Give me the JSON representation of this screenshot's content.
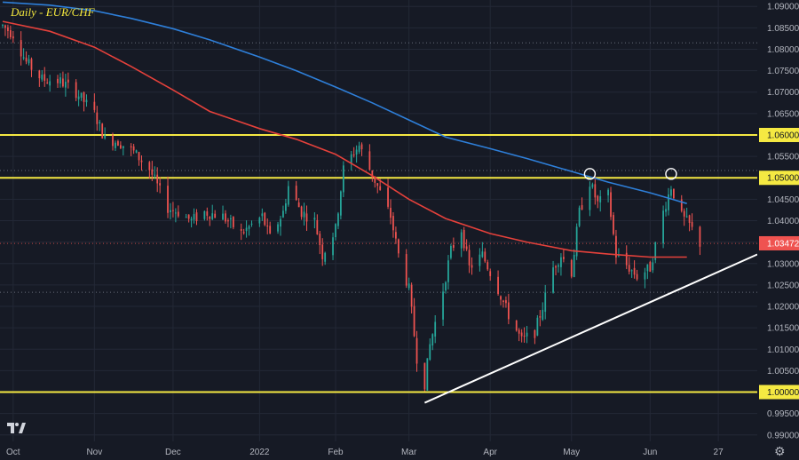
{
  "title": "Daily - EUR/CHF",
  "settings_icon": "gear-icon",
  "logo_icon": "tradingview-logo-icon",
  "colors": {
    "background": "#161a25",
    "grid": "#232836",
    "up": "#26a69a",
    "down": "#ef5350",
    "ma_short": "#e5413b",
    "ma_long": "#2e7fd9",
    "horizontal_level": "#f5e942",
    "trendline": "#ffffff",
    "price_tag": "#ef5350",
    "level_tag": "#f5e942",
    "axis_text": "#b2b5be"
  },
  "chart_data": {
    "type": "candlestick",
    "instrument": "EUR/CHF",
    "timeframe": "Daily",
    "ylim": [
      0.9885,
      1.0915
    ],
    "y_ticks": [
      "1.09000",
      "1.08500",
      "1.08000",
      "1.07500",
      "1.07000",
      "1.06500",
      "1.06000",
      "1.05500",
      "1.05000",
      "1.04500",
      "1.04000",
      "1.03500",
      "1.03000",
      "1.02500",
      "1.02000",
      "1.01500",
      "1.01000",
      "1.00500",
      "1.00000",
      "0.99500",
      "0.99000"
    ],
    "x_ticks": [
      {
        "label": "Oct",
        "date": "2021-10-01"
      },
      {
        "label": "Nov",
        "date": "2021-11-01"
      },
      {
        "label": "Dec",
        "date": "2021-12-01"
      },
      {
        "label": "2022",
        "date": "2022-01-03"
      },
      {
        "label": "Feb",
        "date": "2022-02-01"
      },
      {
        "label": "Mar",
        "date": "2022-03-01"
      },
      {
        "label": "Apr",
        "date": "2022-04-01"
      },
      {
        "label": "May",
        "date": "2022-05-02"
      },
      {
        "label": "Jun",
        "date": "2022-06-01"
      },
      {
        "label": "27",
        "date": "2022-06-27"
      }
    ],
    "x_range": [
      "2021-09-27",
      "2022-06-29"
    ],
    "last_price": "1.03472",
    "horizontal_levels": [
      {
        "value": 1.06,
        "label": "1.06000"
      },
      {
        "value": 1.05,
        "label": "1.05000"
      },
      {
        "value": 1.0,
        "label": "1.00000"
      }
    ],
    "dotted_levels": [
      1.0815,
      1.0517,
      1.0347,
      1.0233
    ],
    "trendline": {
      "from": {
        "date": "2022-03-07",
        "value": 0.9975
      },
      "to": {
        "date": "2022-06-29",
        "value": 1.0315
      }
    },
    "circled_highs": [
      {
        "date": "2022-05-09",
        "value": 1.0505
      },
      {
        "date": "2022-06-09",
        "value": 1.0505
      }
    ],
    "ma_short": [
      [
        "2021-09-27",
        1.0865
      ],
      [
        "2021-10-15",
        1.0842
      ],
      [
        "2021-11-01",
        1.0805
      ],
      [
        "2021-11-15",
        1.076
      ],
      [
        "2021-12-01",
        1.0705
      ],
      [
        "2021-12-15",
        1.0655
      ],
      [
        "2022-01-03",
        1.0615
      ],
      [
        "2022-01-17",
        1.059
      ],
      [
        "2022-02-01",
        1.0555
      ],
      [
        "2022-02-15",
        1.0505
      ],
      [
        "2022-03-01",
        1.045
      ],
      [
        "2022-03-15",
        1.0405
      ],
      [
        "2022-04-01",
        1.037
      ],
      [
        "2022-04-15",
        1.035
      ],
      [
        "2022-05-02",
        1.033
      ],
      [
        "2022-05-16",
        1.0322
      ],
      [
        "2022-06-01",
        1.0315
      ],
      [
        "2022-06-15",
        1.0315
      ]
    ],
    "ma_long": [
      [
        "2021-09-27",
        1.091
      ],
      [
        "2021-10-15",
        1.0903
      ],
      [
        "2021-11-01",
        1.089
      ],
      [
        "2021-11-15",
        1.0872
      ],
      [
        "2021-12-01",
        1.0848
      ],
      [
        "2021-12-15",
        1.0822
      ],
      [
        "2022-01-03",
        1.0782
      ],
      [
        "2022-01-17",
        1.075
      ],
      [
        "2022-02-01",
        1.0712
      ],
      [
        "2022-02-15",
        1.0675
      ],
      [
        "2022-03-01",
        1.0635
      ],
      [
        "2022-03-15",
        1.0595
      ],
      [
        "2022-04-01",
        1.0568
      ],
      [
        "2022-04-15",
        1.0545
      ],
      [
        "2022-05-02",
        1.0515
      ],
      [
        "2022-05-16",
        1.049
      ],
      [
        "2022-06-01",
        1.0465
      ],
      [
        "2022-06-15",
        1.044
      ]
    ],
    "price_path": [
      [
        "2021-09-27",
        1.0855
      ],
      [
        "2021-10-01",
        1.0835
      ],
      [
        "2021-10-06",
        1.077
      ],
      [
        "2021-10-12",
        1.073
      ],
      [
        "2021-10-19",
        1.0725
      ],
      [
        "2021-10-25",
        1.07
      ],
      [
        "2021-11-01",
        1.065
      ],
      [
        "2021-11-05",
        1.059
      ],
      [
        "2021-11-10",
        1.0585
      ],
      [
        "2021-11-16",
        1.056
      ],
      [
        "2021-11-22",
        1.052
      ],
      [
        "2021-11-29",
        1.043
      ],
      [
        "2021-12-03",
        1.042
      ],
      [
        "2021-12-08",
        1.04
      ],
      [
        "2021-12-13",
        1.042
      ],
      [
        "2021-12-20",
        1.041
      ],
      [
        "2021-12-27",
        1.037
      ],
      [
        "2022-01-04",
        1.041
      ],
      [
        "2022-01-07",
        1.036
      ],
      [
        "2022-01-12",
        1.042
      ],
      [
        "2022-01-14",
        1.048
      ],
      [
        "2022-01-19",
        1.042
      ],
      [
        "2022-01-24",
        1.04
      ],
      [
        "2022-01-27",
        1.032
      ],
      [
        "2022-02-01",
        1.038
      ],
      [
        "2022-02-04",
        1.052
      ],
      [
        "2022-02-08",
        1.056
      ],
      [
        "2022-02-10",
        1.0575
      ],
      [
        "2022-02-14",
        1.052
      ],
      [
        "2022-02-17",
        1.048
      ],
      [
        "2022-02-22",
        1.041
      ],
      [
        "2022-02-25",
        1.032
      ],
      [
        "2022-03-01",
        1.024
      ],
      [
        "2022-03-04",
        1.008
      ],
      [
        "2022-03-07",
        1.002
      ],
      [
        "2022-03-09",
        1.011
      ],
      [
        "2022-03-14",
        1.024
      ],
      [
        "2022-03-17",
        1.033
      ],
      [
        "2022-03-21",
        1.038
      ],
      [
        "2022-03-24",
        1.029
      ],
      [
        "2022-03-29",
        1.032
      ],
      [
        "2022-04-04",
        1.024
      ],
      [
        "2022-04-08",
        1.018
      ],
      [
        "2022-04-13",
        1.012
      ],
      [
        "2022-04-18",
        1.014
      ],
      [
        "2022-04-21",
        1.02
      ],
      [
        "2022-04-25",
        1.029
      ],
      [
        "2022-04-28",
        1.032
      ],
      [
        "2022-05-02",
        1.028
      ],
      [
        "2022-05-05",
        1.042
      ],
      [
        "2022-05-09",
        1.049
      ],
      [
        "2022-05-12",
        1.044
      ],
      [
        "2022-05-16",
        1.046
      ],
      [
        "2022-05-19",
        1.032
      ],
      [
        "2022-05-24",
        1.029
      ],
      [
        "2022-05-27",
        1.027
      ],
      [
        "2022-06-01",
        1.029
      ],
      [
        "2022-06-06",
        1.042
      ],
      [
        "2022-06-09",
        1.048
      ],
      [
        "2022-06-13",
        1.041
      ],
      [
        "2022-06-16",
        1.039
      ],
      [
        "2022-06-20",
        1.0347
      ]
    ]
  }
}
